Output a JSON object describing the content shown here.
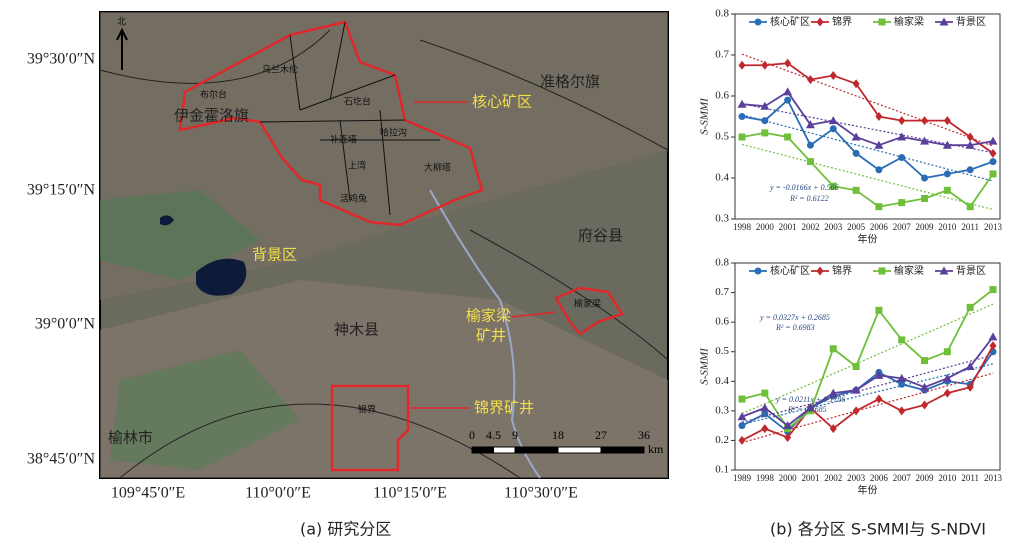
{
  "map": {
    "lat_labels": [
      "39°30′0″N",
      "39°15′0″N",
      "39°0′0″N",
      "38°45′0″N"
    ],
    "lon_labels": [
      "109°45′0″E",
      "110°0′0″E",
      "110°15′0″E",
      "110°30′0″E"
    ],
    "north": "北",
    "places": {
      "zhungeer": "准格尔旗",
      "yijinhuoluo": "伊金霍洛旗",
      "core": "核心矿区",
      "background": "背景区",
      "fugu": "府谷县",
      "yujialiang": [
        "榆家梁",
        "矿井"
      ],
      "shenmu": "神木县",
      "jinjie": "锦界矿井",
      "yulin": "榆林市"
    },
    "small_places": [
      "布尔台",
      "石圪台",
      "补连塔",
      "哈拉沟",
      "乌兰木伦",
      "大柳塔",
      "活鸡兔",
      "上湾",
      "榆家梁",
      "锦界"
    ],
    "scale": [
      0,
      4.5,
      9,
      18,
      27,
      36
    ],
    "scale_unit": "km",
    "caption": "(a) 研究分区"
  },
  "chart_data": [
    {
      "type": "line",
      "ylabel": "S-SMMI",
      "xlabel": "年份",
      "categories": [
        "1998",
        "2000",
        "2001",
        "2002",
        "2003",
        "2005",
        "2006",
        "2007",
        "2009",
        "2010",
        "2011",
        "2013"
      ],
      "series": [
        {
          "name": "核心矿区",
          "color": "#2a6db5",
          "marker": "circle",
          "values": [
            0.55,
            0.54,
            0.59,
            0.48,
            0.52,
            0.46,
            0.42,
            0.45,
            0.4,
            0.41,
            0.42,
            0.44
          ]
        },
        {
          "name": "锦界",
          "color": "#c0282d",
          "marker": "diamond",
          "values": [
            0.675,
            0.675,
            0.68,
            0.64,
            0.65,
            0.63,
            0.55,
            0.54,
            0.54,
            0.54,
            0.5,
            0.46
          ]
        },
        {
          "name": "榆家梁",
          "color": "#6fbf3a",
          "marker": "square",
          "values": [
            0.5,
            0.51,
            0.5,
            0.44,
            0.38,
            0.37,
            0.33,
            0.34,
            0.35,
            0.37,
            0.33,
            0.41
          ]
        },
        {
          "name": "背景区",
          "color": "#5b3f9a",
          "marker": "triangle",
          "values": [
            0.58,
            0.575,
            0.61,
            0.53,
            0.54,
            0.5,
            0.48,
            0.5,
            0.49,
            0.48,
            0.48,
            0.49
          ]
        }
      ],
      "annotations": [
        "y = -0.0166x + 0.566",
        "R² = 0.6122"
      ],
      "ylim": [
        0.3,
        0.8
      ],
      "yticks": [
        0.3,
        0.4,
        0.5,
        0.6,
        0.7,
        0.8
      ],
      "trend_lines": true
    },
    {
      "type": "line",
      "ylabel": "S-SMMI",
      "xlabel": "年份",
      "categories": [
        "1989",
        "1998",
        "2000",
        "2001",
        "2002",
        "2003",
        "2006",
        "2007",
        "2009",
        "2010",
        "2011",
        "2013"
      ],
      "series": [
        {
          "name": "核心矿区",
          "color": "#2a6db5",
          "marker": "circle",
          "values": [
            0.25,
            0.29,
            0.23,
            0.31,
            0.35,
            0.37,
            0.43,
            0.39,
            0.37,
            0.4,
            0.39,
            0.5
          ]
        },
        {
          "name": "锦界",
          "color": "#c0282d",
          "marker": "diamond",
          "values": [
            0.2,
            0.24,
            0.21,
            0.31,
            0.24,
            0.3,
            0.34,
            0.3,
            0.32,
            0.36,
            0.38,
            0.52
          ]
        },
        {
          "name": "榆家梁",
          "color": "#6fbf3a",
          "marker": "square",
          "values": [
            0.34,
            0.36,
            0.24,
            0.3,
            0.51,
            0.45,
            0.64,
            0.54,
            0.47,
            0.5,
            0.65,
            0.71
          ]
        },
        {
          "name": "背景区",
          "color": "#5b3f9a",
          "marker": "triangle",
          "values": [
            0.28,
            0.31,
            0.25,
            0.31,
            0.36,
            0.37,
            0.42,
            0.41,
            0.38,
            0.41,
            0.45,
            0.55
          ]
        }
      ],
      "annotations": [
        "y = 0.0327x + 0.2685",
        "R² = 0.6983",
        "y = 0.0211x + 0.1786",
        "R² = 0.7685"
      ],
      "ylim": [
        0.1,
        0.8
      ],
      "yticks": [
        0.1,
        0.2,
        0.3,
        0.4,
        0.5,
        0.6,
        0.7,
        0.8
      ],
      "trend_lines": true
    }
  ],
  "caption_b": "(b) 各分区 S-SMMI与 S-NDVI"
}
